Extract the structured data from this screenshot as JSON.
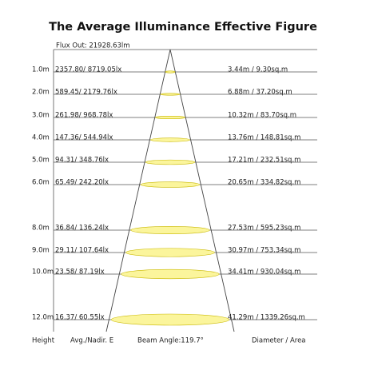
{
  "title": "The Average Illuminance Effective Figure",
  "flux": "Flux Out: 21928.63lm",
  "rows": [
    {
      "height": "1.0m",
      "illuminance": "2357.80/ 8719.05lx",
      "spot": "3.44m / 9.30sq.m"
    },
    {
      "height": "2.0m",
      "illuminance": "589.45/ 2179.76lx",
      "spot": "6.88m / 37.20sq.m"
    },
    {
      "height": "3.0m",
      "illuminance": "261.98/ 968.78lx",
      "spot": "10.32m / 83.70sq.m"
    },
    {
      "height": "4.0m",
      "illuminance": "147.36/ 544.94lx",
      "spot": "13.76m / 148.81sq.m"
    },
    {
      "height": "5.0m",
      "illuminance": "94.31/ 348.76lx",
      "spot": "17.21m / 232.51sq.m"
    },
    {
      "height": "6.0m",
      "illuminance": "65.49/ 242.20lx",
      "spot": "20.65m / 334.82sq.m"
    },
    {
      "height": "8.0m",
      "illuminance": "36.84/ 136.24lx",
      "spot": "27.53m / 595.23sq.m"
    },
    {
      "height": "9.0m",
      "illuminance": "29.11/ 107.64lx",
      "spot": "30.97m / 753.34sq.m"
    },
    {
      "height": "10.0m",
      "illuminance": "23.58/ 87.19lx",
      "spot": "34.41m / 930.04sq.m"
    },
    {
      "height": "12.0m",
      "illuminance": "16.37/ 60.55lx",
      "spot": "41.29m / 1339.26sq.m"
    }
  ],
  "footer": {
    "height": "Height",
    "illuminance": "Avg./Nadir. E",
    "beam": "Beam Angle:119.7°",
    "spot": "Diameter / Area"
  }
}
